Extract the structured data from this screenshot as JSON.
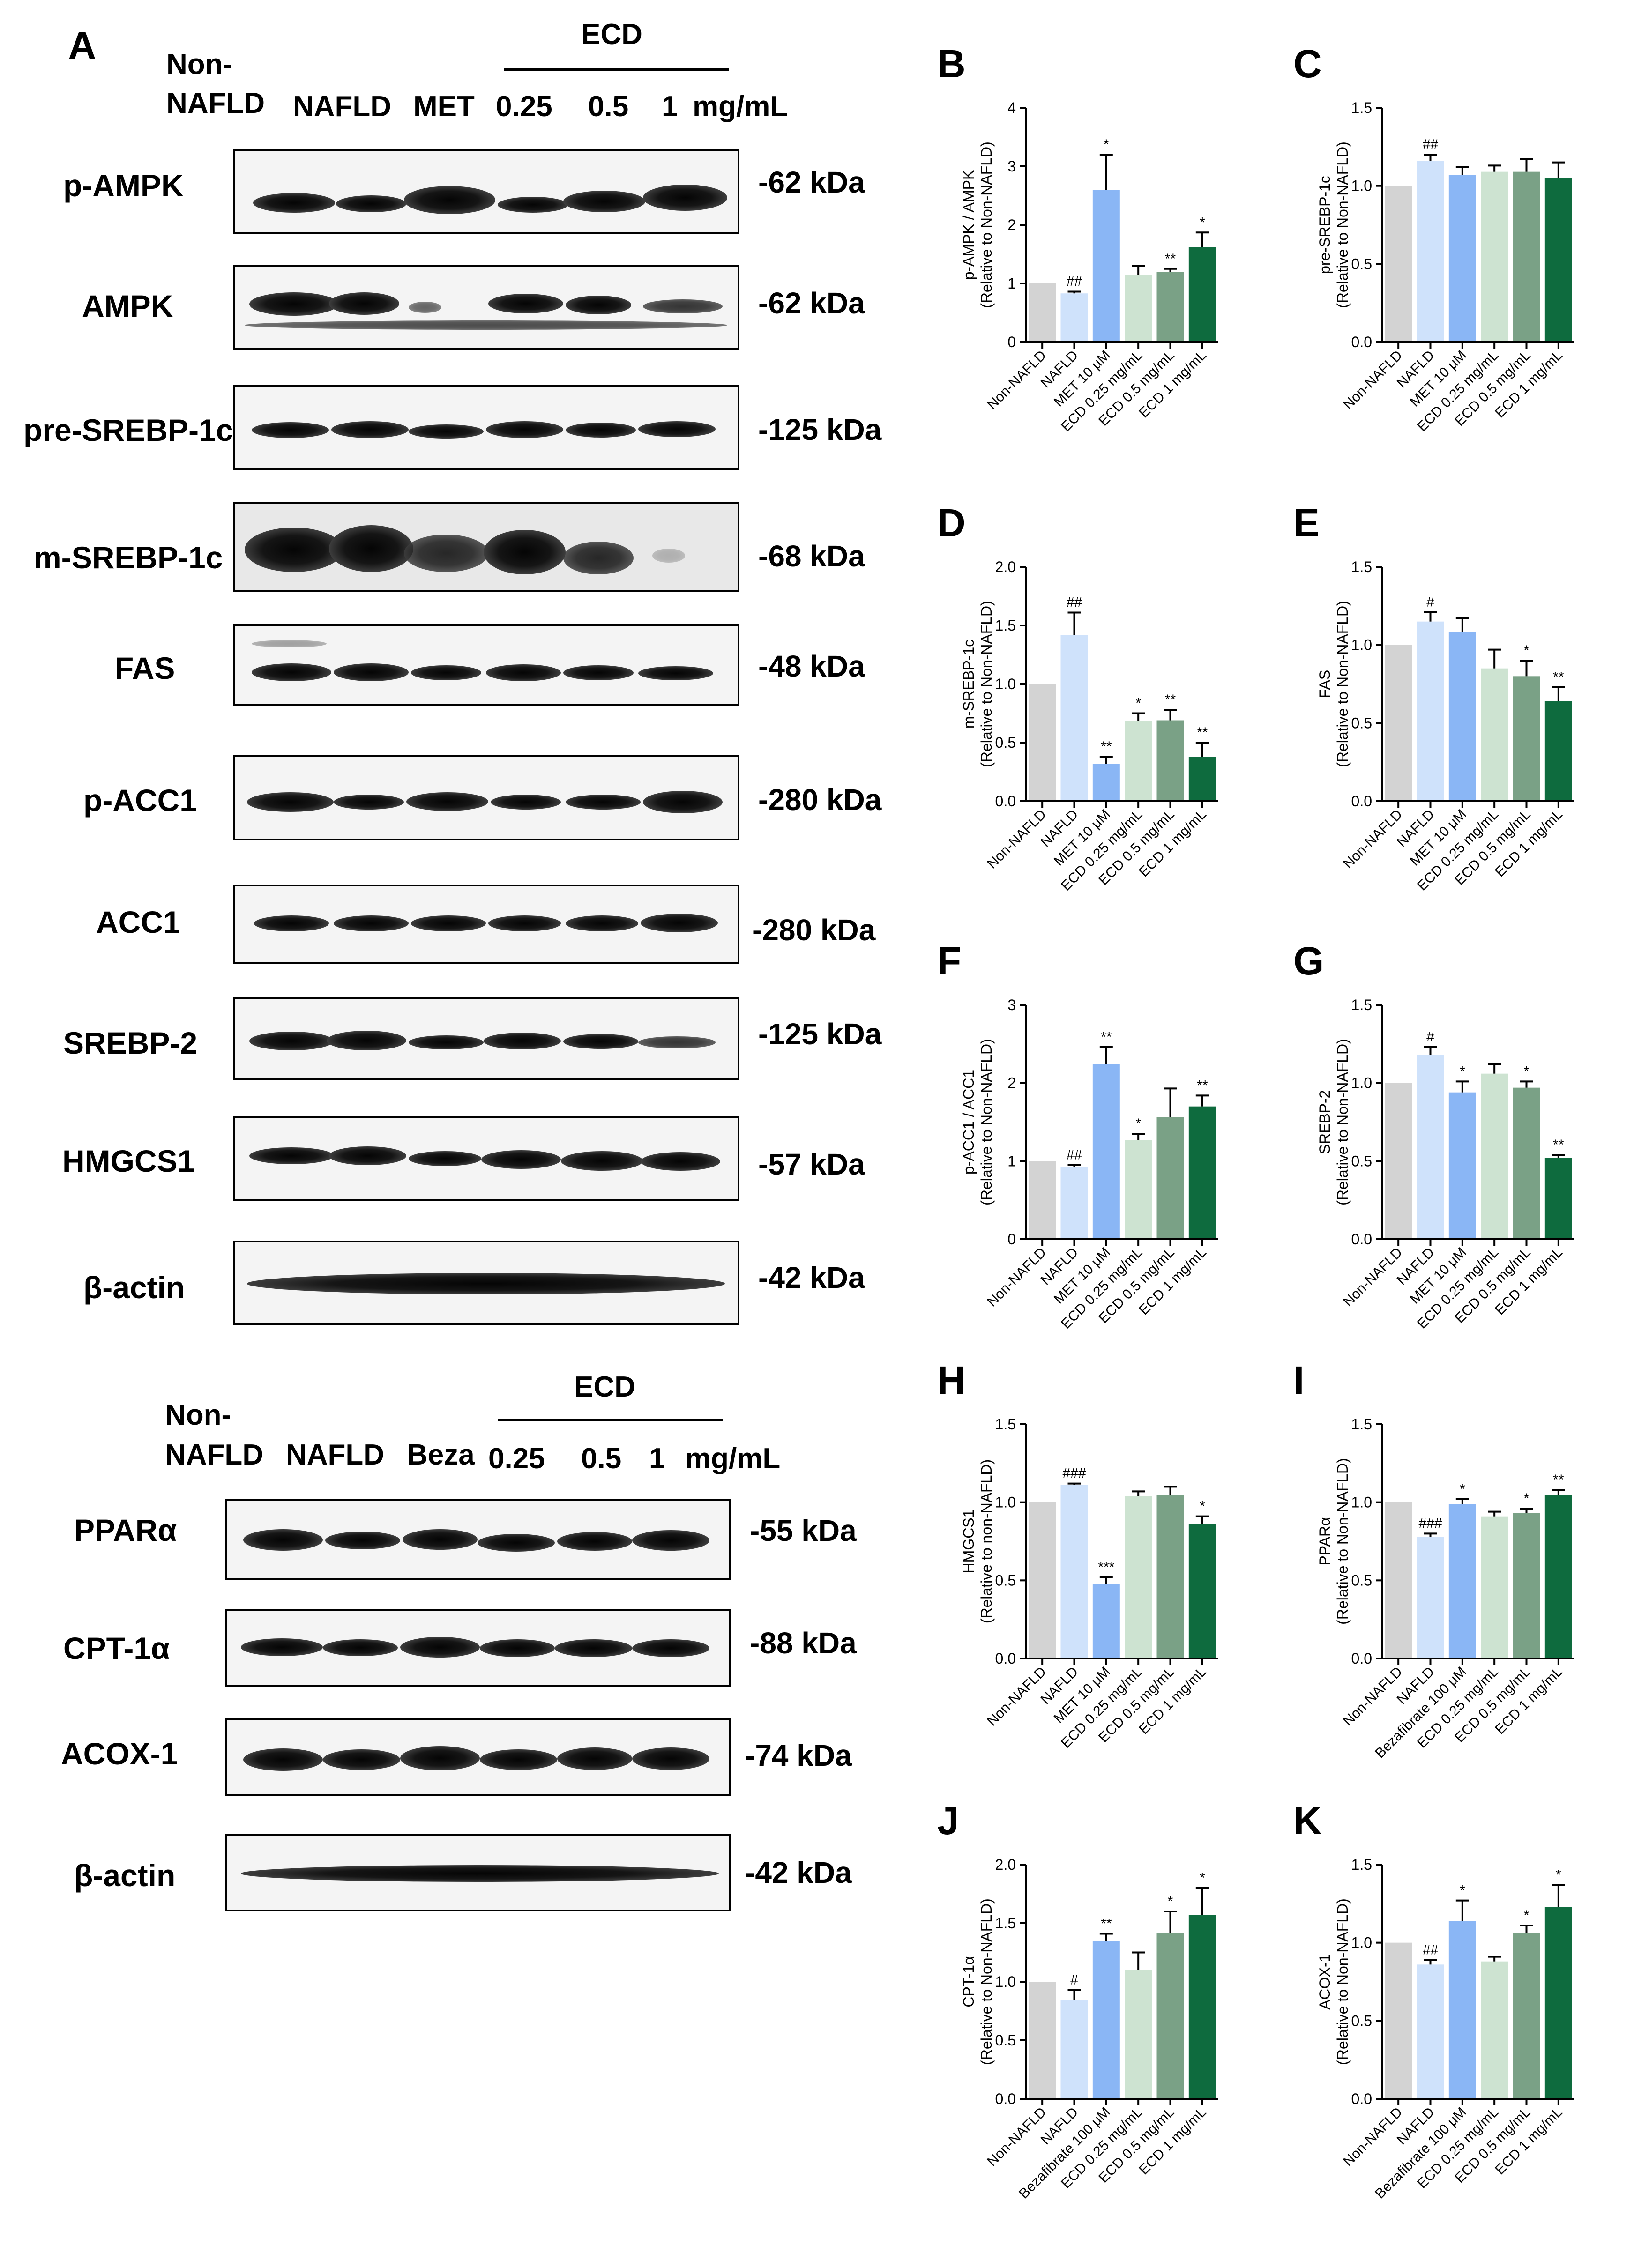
{
  "panel_A": {
    "letter": "A",
    "set1": {
      "header": {
        "non_1": "Non-",
        "non_2": "NAFLD",
        "nafld": "NAFLD",
        "met": "MET",
        "d1": "0.25",
        "d2": "0.5",
        "d3": "1",
        "unit": "mg/mL",
        "ecd": "ECD"
      },
      "blots": [
        {
          "label": "p-AMPK",
          "kda": "-62 kDa"
        },
        {
          "label": "AMPK",
          "kda": "-62 kDa"
        },
        {
          "label": "pre-SREBP-1c",
          "kda": "-125 kDa"
        },
        {
          "label": "m-SREBP-1c",
          "kda": "-68 kDa"
        },
        {
          "label": "FAS",
          "kda": "-48 kDa"
        },
        {
          "label": "p-ACC1",
          "kda": "-280 kDa"
        },
        {
          "label": "ACC1",
          "kda": "-280 kDa"
        },
        {
          "label": "SREBP-2",
          "kda": "-125 kDa"
        },
        {
          "label": "HMGCS1",
          "kda": "-57 kDa"
        },
        {
          "label": "β-actin",
          "kda": "-42 kDa"
        }
      ]
    },
    "set2": {
      "header": {
        "non_1": "Non-",
        "non_2": "NAFLD",
        "nafld": "NAFLD",
        "beza": "Beza",
        "d1": "0.25",
        "d2": "0.5",
        "d3": "1",
        "unit": "mg/mL",
        "ecd": "ECD"
      },
      "blots": [
        {
          "label": "PPARα",
          "kda": "-55 kDa"
        },
        {
          "label": "CPT-1α",
          "kda": "-88 kDa"
        },
        {
          "label": "ACOX-1",
          "kda": "-74 kDa"
        },
        {
          "label": "β-actin",
          "kda": "-42 kDa"
        }
      ]
    }
  },
  "colors": [
    "#d3d3d3",
    "#cfe2fb",
    "#8ab6f5",
    "#cde3d1",
    "#7aa186",
    "#0e6b3e"
  ],
  "chart_data": [
    {
      "letter": "B",
      "type": "bar",
      "ylabel": "p-AMPK / AMPK",
      "ylabel2": "(Relative to Non-NAFLD)",
      "ylim": [
        0,
        4
      ],
      "yticks": [
        "0",
        "1",
        "2",
        "3",
        "4"
      ],
      "ytick_values": [
        0,
        1,
        2,
        3,
        4
      ],
      "categories": [
        "Non-NAFLD",
        "NAFLD",
        "MET 10 μM",
        "ECD 0.25 mg/mL",
        "ECD 0.5 mg/mL",
        "ECD 1 mg/mL"
      ],
      "values": [
        1.0,
        0.83,
        2.6,
        1.15,
        1.2,
        1.62
      ],
      "errors": [
        0,
        0.03,
        0.6,
        0.15,
        0.05,
        0.25
      ],
      "annotations": [
        "",
        "##",
        "*",
        "",
        "**",
        "*"
      ]
    },
    {
      "letter": "C",
      "type": "bar",
      "ylabel": "pre-SREBP-1c",
      "ylabel2": "(Relative to Non-NAFLD)",
      "ylim": [
        0,
        1.5
      ],
      "yticks": [
        "0.0",
        "0.5",
        "1.0",
        "1.5"
      ],
      "ytick_values": [
        0,
        0.5,
        1,
        1.5
      ],
      "categories": [
        "Non-NAFLD",
        "NAFLD",
        "MET 10 μM",
        "ECD 0.25 mg/mL",
        "ECD 0.5 mg/mL",
        "ECD 1 mg/mL"
      ],
      "values": [
        1.0,
        1.16,
        1.07,
        1.09,
        1.09,
        1.05
      ],
      "errors": [
        0,
        0.04,
        0.05,
        0.04,
        0.08,
        0.1
      ],
      "annotations": [
        "",
        "##",
        "",
        "",
        "",
        ""
      ]
    },
    {
      "letter": "D",
      "type": "bar",
      "ylabel": "m-SREBP-1c",
      "ylabel2": "(Relative to Non-NAFLD)",
      "ylim": [
        0,
        2.0
      ],
      "yticks": [
        "0.0",
        "0.5",
        "1.0",
        "1.5",
        "2.0"
      ],
      "ytick_values": [
        0,
        0.5,
        1,
        1.5,
        2
      ],
      "categories": [
        "Non-NAFLD",
        "NAFLD",
        "MET 10 μM",
        "ECD 0.25 mg/mL",
        "ECD 0.5 mg/mL",
        "ECD 1 mg/mL"
      ],
      "values": [
        1.0,
        1.42,
        0.32,
        0.68,
        0.69,
        0.38
      ],
      "errors": [
        0,
        0.19,
        0.06,
        0.07,
        0.09,
        0.12
      ],
      "annotations": [
        "",
        "##",
        "**",
        "*",
        "**",
        "**"
      ]
    },
    {
      "letter": "E",
      "type": "bar",
      "ylabel": "FAS",
      "ylabel2": "(Relative to Non-NAFLD)",
      "ylim": [
        0,
        1.5
      ],
      "yticks": [
        "0.0",
        "0.5",
        "1.0",
        "1.5"
      ],
      "ytick_values": [
        0,
        0.5,
        1,
        1.5
      ],
      "categories": [
        "Non-NAFLD",
        "NAFLD",
        "MET 10 μM",
        "ECD 0.25 mg/mL",
        "ECD 0.5 mg/mL",
        "ECD 1 mg/mL"
      ],
      "values": [
        1.0,
        1.15,
        1.08,
        0.85,
        0.8,
        0.64
      ],
      "errors": [
        0,
        0.06,
        0.09,
        0.12,
        0.1,
        0.09
      ],
      "annotations": [
        "",
        "#",
        "",
        "",
        "*",
        "**"
      ]
    },
    {
      "letter": "F",
      "type": "bar",
      "ylabel": "p-ACC1 / ACC1",
      "ylabel2": "(Relative to Non-NAFLD)",
      "ylim": [
        0,
        3
      ],
      "yticks": [
        "0",
        "1",
        "2",
        "3"
      ],
      "ytick_values": [
        0,
        1,
        2,
        3
      ],
      "categories": [
        "Non-NAFLD",
        "NAFLD",
        "MET 10 μM",
        "ECD 0.25 mg/mL",
        "ECD 0.5 mg/mL",
        "ECD 1 mg/mL"
      ],
      "values": [
        1.0,
        0.92,
        2.24,
        1.27,
        1.56,
        1.7
      ],
      "errors": [
        0,
        0.03,
        0.22,
        0.08,
        0.37,
        0.14
      ],
      "annotations": [
        "",
        "##",
        "**",
        "*",
        "",
        "**"
      ]
    },
    {
      "letter": "G",
      "type": "bar",
      "ylabel": "SREBP-2",
      "ylabel2": "(Relative to Non-NAFLD)",
      "ylim": [
        0,
        1.5
      ],
      "yticks": [
        "0.0",
        "0.5",
        "1.0",
        "1.5"
      ],
      "ytick_values": [
        0,
        0.5,
        1,
        1.5
      ],
      "categories": [
        "Non-NAFLD",
        "NAFLD",
        "MET 10 μM",
        "ECD 0.25 mg/mL",
        "ECD 0.5 mg/mL",
        "ECD 1 mg/mL"
      ],
      "values": [
        1.0,
        1.18,
        0.94,
        1.06,
        0.97,
        0.52
      ],
      "errors": [
        0,
        0.05,
        0.07,
        0.06,
        0.04,
        0.02
      ],
      "annotations": [
        "",
        "#",
        "*",
        "",
        "*",
        "**"
      ]
    },
    {
      "letter": "H",
      "type": "bar",
      "ylabel": "HMGCS1",
      "ylabel2": "(Relative to non-NAFLD)",
      "ylim": [
        0,
        1.5
      ],
      "yticks": [
        "0.0",
        "0.5",
        "1.0",
        "1.5"
      ],
      "ytick_values": [
        0,
        0.5,
        1,
        1.5
      ],
      "categories": [
        "Non-NAFLD",
        "NAFLD",
        "MET 10 μM",
        "ECD 0.25 mg/mL",
        "ECD 0.5 mg/mL",
        "ECD 1 mg/mL"
      ],
      "values": [
        1.0,
        1.11,
        0.48,
        1.04,
        1.05,
        0.86
      ],
      "errors": [
        0,
        0.01,
        0.04,
        0.03,
        0.05,
        0.05
      ],
      "annotations": [
        "",
        "###",
        "***",
        "",
        "",
        "*"
      ]
    },
    {
      "letter": "I",
      "type": "bar",
      "ylabel": "PPARα",
      "ylabel2": "(Relative to Non-NAFLD)",
      "ylim": [
        0,
        1.5
      ],
      "yticks": [
        "0.0",
        "0.5",
        "1.0",
        "1.5"
      ],
      "ytick_values": [
        0,
        0.5,
        1,
        1.5
      ],
      "categories": [
        "Non-NAFLD",
        "NAFLD",
        "Bezafibrate 100 μM",
        "ECD 0.25 mg/mL",
        "ECD 0.5 mg/mL",
        "ECD 1 mg/mL"
      ],
      "values": [
        1.0,
        0.78,
        0.99,
        0.91,
        0.93,
        1.05
      ],
      "errors": [
        0,
        0.02,
        0.03,
        0.03,
        0.03,
        0.03
      ],
      "annotations": [
        "",
        "###",
        "*",
        "",
        "*",
        "**"
      ]
    },
    {
      "letter": "J",
      "type": "bar",
      "ylabel": "CPT-1α",
      "ylabel2": "(Relative to Non-NAFLD)",
      "ylim": [
        0,
        2.0
      ],
      "yticks": [
        "0.0",
        "0.5",
        "1.0",
        "1.5",
        "2.0"
      ],
      "ytick_values": [
        0,
        0.5,
        1,
        1.5,
        2
      ],
      "categories": [
        "Non-NAFLD",
        "NAFLD",
        "Bezafibrate 100 μM",
        "ECD 0.25 mg/mL",
        "ECD 0.5 mg/mL",
        "ECD 1 mg/mL"
      ],
      "values": [
        1.0,
        0.84,
        1.35,
        1.1,
        1.42,
        1.57
      ],
      "errors": [
        0,
        0.09,
        0.06,
        0.15,
        0.18,
        0.23
      ],
      "annotations": [
        "",
        "#",
        "**",
        "",
        "*",
        "*"
      ]
    },
    {
      "letter": "K",
      "type": "bar",
      "ylabel": "ACOX-1",
      "ylabel2": "(Relative to Non-NAFLD)",
      "ylim": [
        0,
        1.5
      ],
      "yticks": [
        "0.0",
        "0.5",
        "1.0",
        "1.5"
      ],
      "ytick_values": [
        0,
        0.5,
        1,
        1.5
      ],
      "categories": [
        "Non-NAFLD",
        "NAFLD",
        "Bezafibrate 100 μM",
        "ECD 0.25 mg/mL",
        "ECD 0.5 mg/mL",
        "ECD 1 mg/mL"
      ],
      "values": [
        1.0,
        0.86,
        1.14,
        0.88,
        1.06,
        1.23
      ],
      "errors": [
        0,
        0.03,
        0.13,
        0.03,
        0.05,
        0.14
      ],
      "annotations": [
        "",
        "##",
        "*",
        "",
        "*",
        "*"
      ]
    }
  ]
}
